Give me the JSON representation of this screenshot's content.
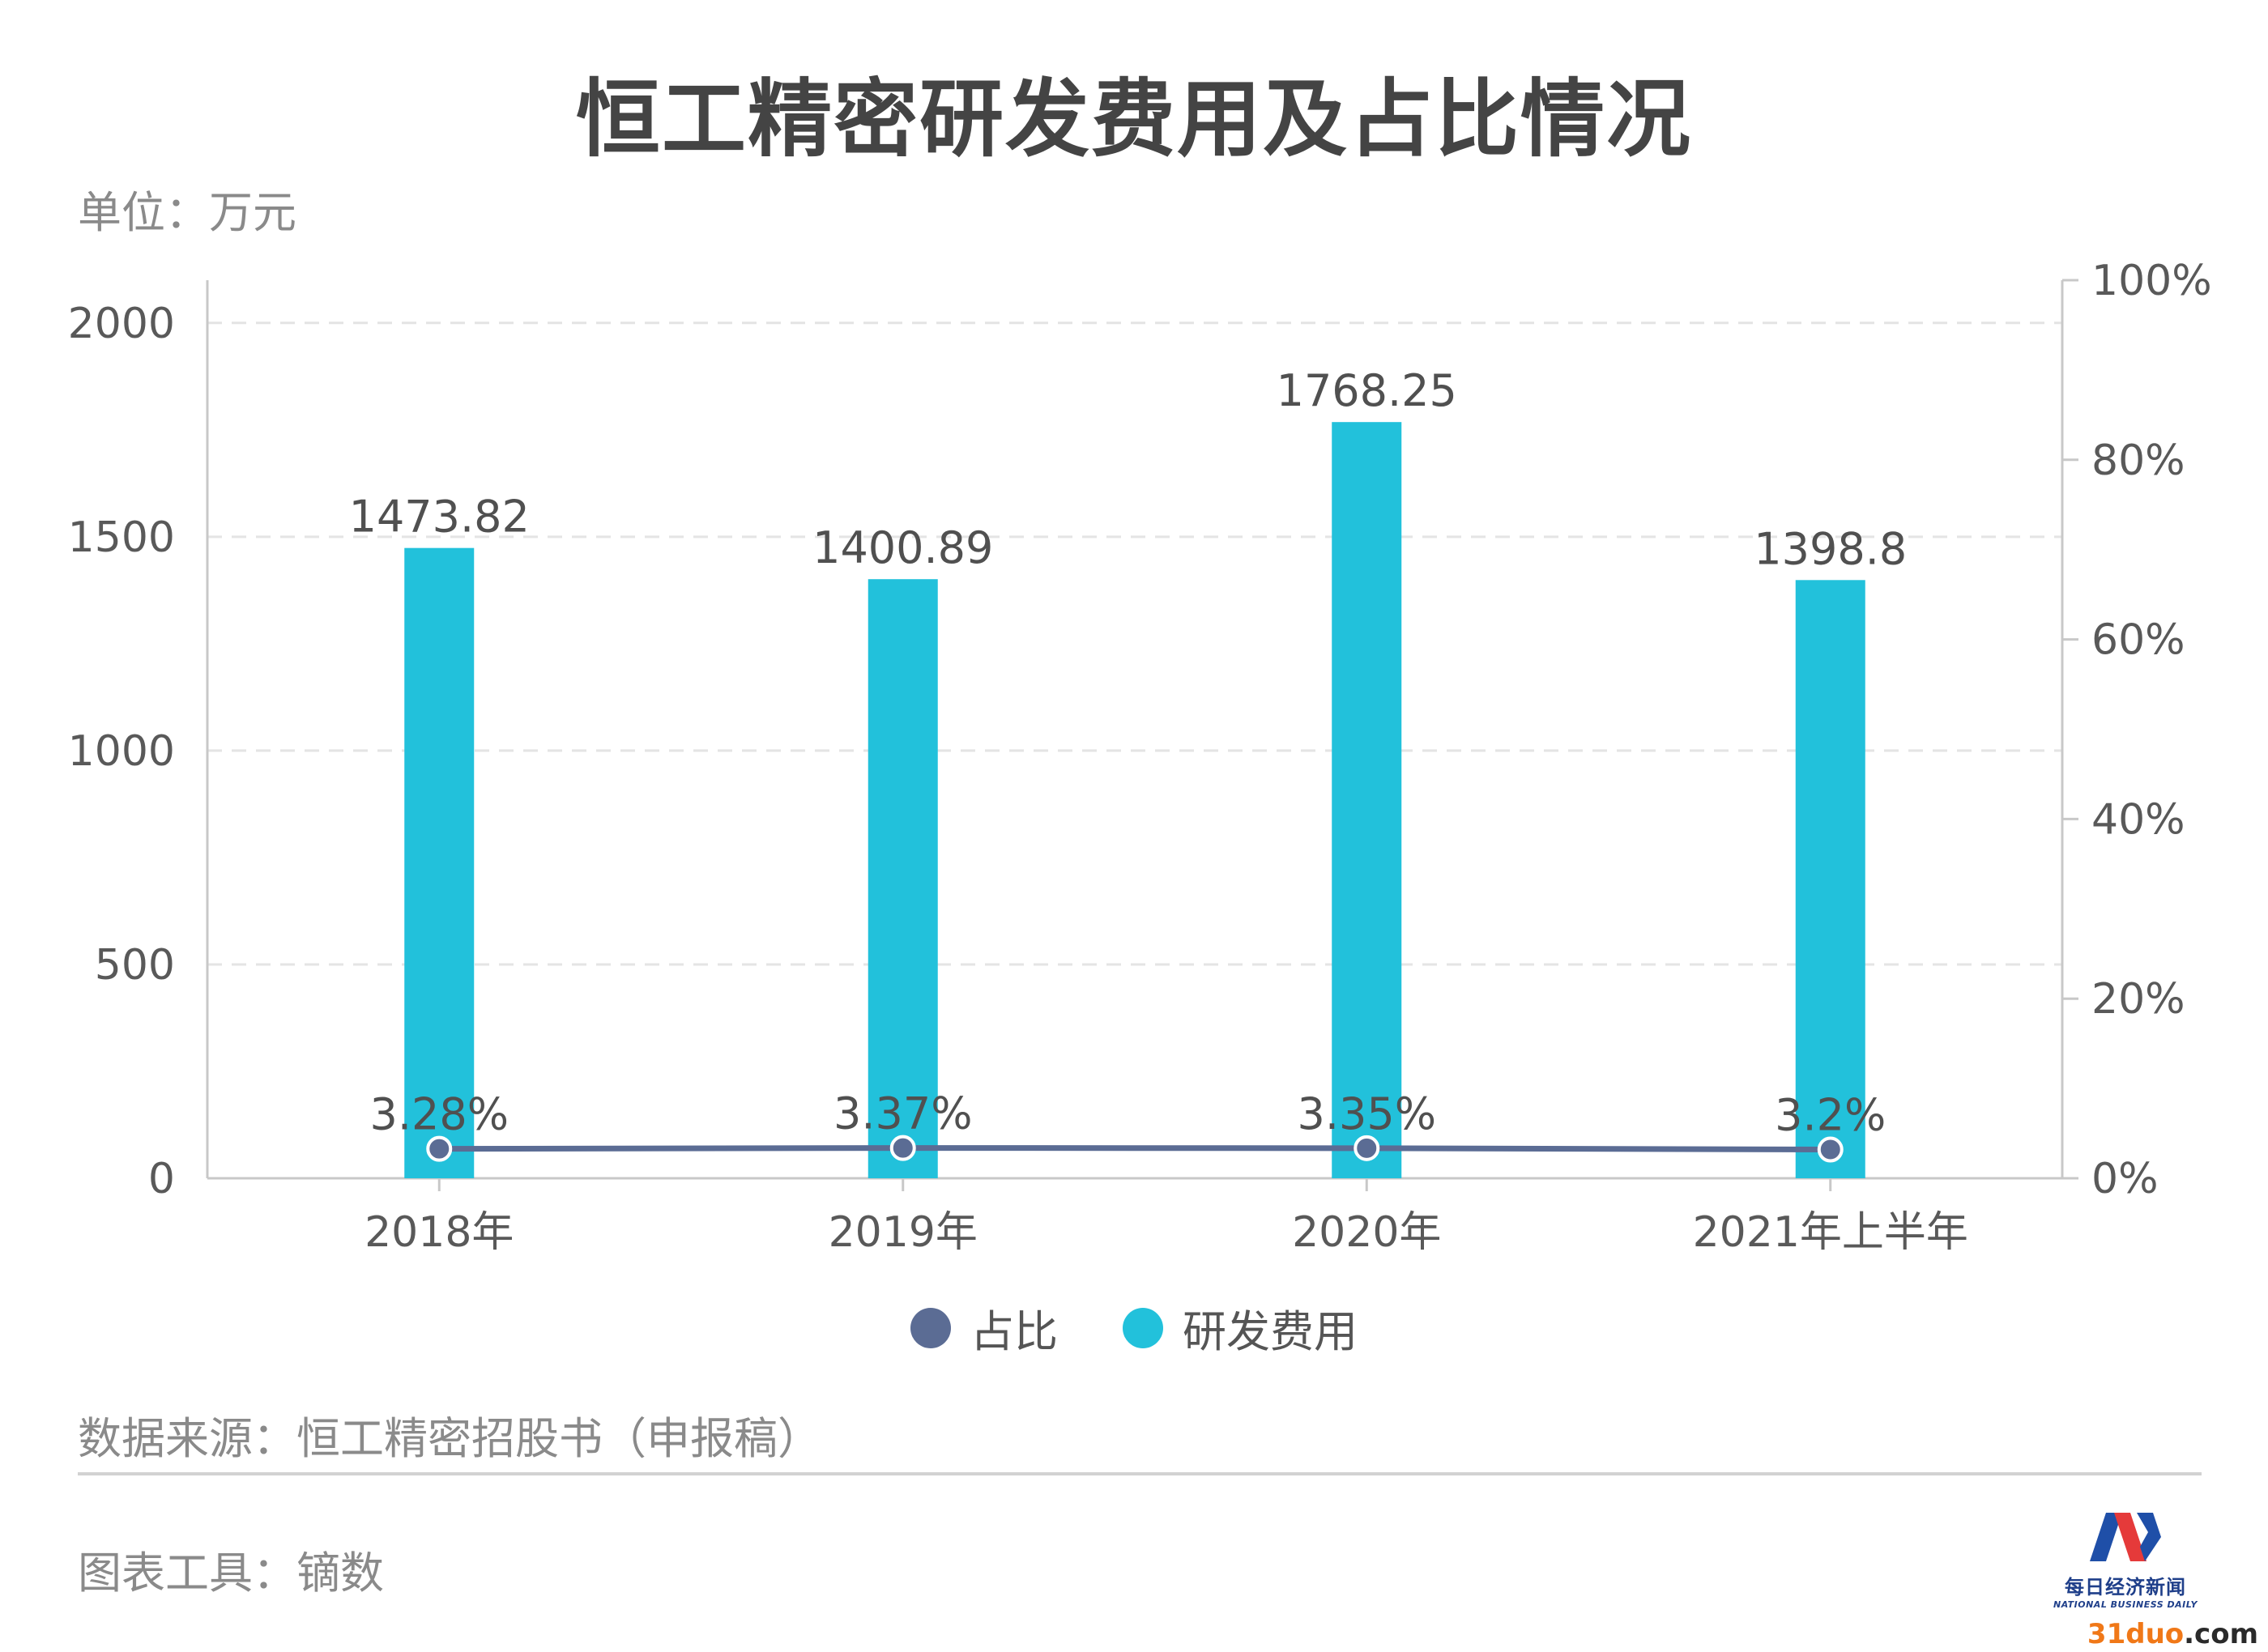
{
  "title": "恒工精密研发费用及占比情况",
  "unit_label": "单位：万元",
  "source_label": "数据来源：恒工精密招股书（申报稿）",
  "tool_label": "图表工具：镝数",
  "logo": {
    "cn": "每日经济新闻",
    "en": "NATIONAL BUSINESS DAILY"
  },
  "watermark": {
    "brand": "31duo",
    "suffix": ".com"
  },
  "colors": {
    "bar": "#22c1db",
    "line": "#5b6c94",
    "grid": "#e4e4e4",
    "axis": "#c8c8c8"
  },
  "chart_data": {
    "type": "bar+line",
    "categories": [
      "2018年",
      "2019年",
      "2020年",
      "2021年上半年"
    ],
    "series": [
      {
        "name": "研发费用",
        "type": "bar",
        "axis": "left",
        "values": [
          1473.82,
          1400.89,
          1768.25,
          1398.8
        ],
        "labels": [
          "1473.82",
          "1400.89",
          "1768.25",
          "1398.8"
        ]
      },
      {
        "name": "占比",
        "type": "line",
        "axis": "right",
        "values": [
          3.28,
          3.37,
          3.35,
          3.2
        ],
        "labels": [
          "3.28%",
          "3.37%",
          "3.35%",
          "3.2%"
        ]
      }
    ],
    "y_left": {
      "min": 0,
      "max": 2100,
      "ticks": [
        0,
        500,
        1000,
        1500,
        2000
      ],
      "tick_labels": [
        "0",
        "500",
        "1000",
        "1500",
        "2000"
      ]
    },
    "y_right": {
      "min": 0,
      "max": 100,
      "ticks": [
        0,
        20,
        40,
        60,
        80,
        100
      ],
      "tick_labels": [
        "0%",
        "20%",
        "40%",
        "60%",
        "80%",
        "100%"
      ]
    },
    "grid": true,
    "legend_position": "bottom-center",
    "legend": [
      {
        "name": "占比",
        "color": "#5b6c94"
      },
      {
        "name": "研发费用",
        "color": "#22c1db"
      }
    ]
  }
}
